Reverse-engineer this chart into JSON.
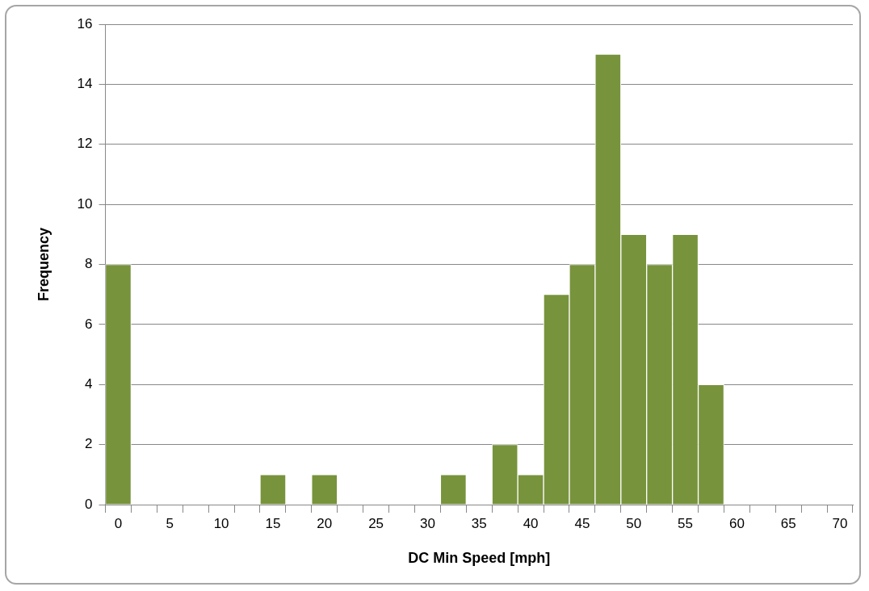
{
  "chart_data": {
    "type": "bar",
    "xlabel": "DC Min Speed [mph]",
    "ylabel": "Frequency",
    "categories": [
      "0",
      null,
      "5",
      null,
      "10",
      null,
      "15",
      null,
      "20",
      null,
      "25",
      null,
      "30",
      null,
      "35",
      null,
      "40",
      null,
      "45",
      null,
      "50",
      null,
      "55",
      null,
      "60",
      null,
      "65",
      null,
      "70"
    ],
    "values": [
      8,
      0,
      0,
      0,
      0,
      0,
      1,
      0,
      1,
      0,
      0,
      0,
      0,
      1,
      0,
      2,
      1,
      7,
      8,
      15,
      9,
      8,
      9,
      4,
      0,
      0,
      0,
      0,
      0
    ],
    "color": "#77933c",
    "ylim": [
      0,
      16
    ],
    "yticks": [
      0,
      2,
      4,
      6,
      8,
      10,
      12,
      14,
      16
    ],
    "grid": "y",
    "legend": false
  }
}
